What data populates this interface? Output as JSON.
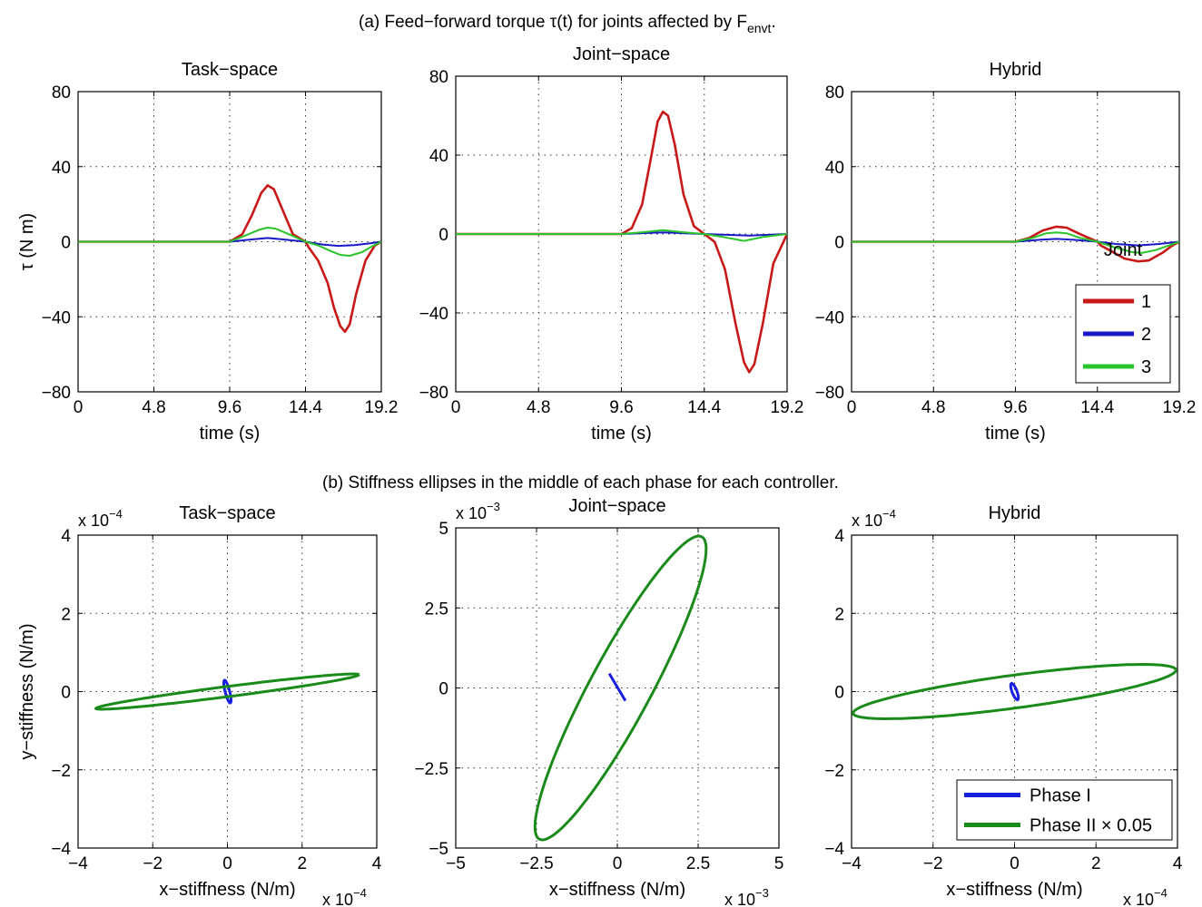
{
  "section_a_title": "(a) Feed−forward torque τ(t) for joints affected by F",
  "section_a_title_sub": "envt",
  "section_a_title_end": ".",
  "section_b_title": "(b) Stiffness ellipses in the middle of each phase for each controller.",
  "colors": {
    "joint1": "#c81818",
    "joint2": "#1818c8",
    "joint3": "#28c428",
    "phase1": "#1820e0",
    "phase2": "#1a8a1a"
  },
  "chart_data": [
    {
      "id": "torque-task",
      "type": "line",
      "title": "Task−space",
      "xlabel": "time (s)",
      "ylabel": "τ (N m)",
      "xlim": [
        0,
        19.2
      ],
      "ylim": [
        -80,
        80
      ],
      "xticks": [
        0,
        4.8,
        9.6,
        14.4,
        19.2
      ],
      "xtick_labels": [
        "0",
        "4.8",
        "9.6",
        "14.4",
        "19.2"
      ],
      "yticks": [
        -80,
        -40,
        0,
        40,
        80
      ],
      "ytick_labels": [
        "−80",
        "−40",
        "0",
        "40",
        "80"
      ],
      "grid": true,
      "series": [
        {
          "name": "1",
          "color": "#c81818",
          "x": [
            0,
            4.8,
            4.9,
            9.6,
            10.4,
            11,
            11.6,
            12,
            12.4,
            13,
            13.6,
            14.4,
            14.6,
            15.2,
            15.8,
            16.2,
            16.6,
            16.9,
            17.2,
            17.6,
            18.2,
            18.8,
            19.2
          ],
          "y": [
            0,
            0,
            0,
            0,
            4,
            14,
            26,
            30,
            28,
            16,
            4,
            0,
            -3,
            -10,
            -22,
            -35,
            -45,
            -48,
            -44,
            -28,
            -10,
            -2,
            0
          ]
        },
        {
          "name": "2",
          "color": "#1818c8",
          "x": [
            0,
            9.6,
            11,
            12,
            13,
            14.4,
            15.5,
            16.5,
            17.5,
            18.5,
            19.2
          ],
          "y": [
            0,
            0,
            1.2,
            2,
            1.2,
            0,
            -1.5,
            -2.2,
            -1.8,
            -0.8,
            0
          ]
        },
        {
          "name": "3",
          "color": "#28c428",
          "x": [
            0,
            9.6,
            10.5,
            11.5,
            12,
            12.5,
            13.5,
            14.4,
            15.2,
            16,
            16.6,
            17.2,
            18,
            18.6,
            19.2
          ],
          "y": [
            0,
            0,
            3,
            6.5,
            7.5,
            7,
            3.5,
            0,
            -2,
            -5,
            -7,
            -7.5,
            -5.5,
            -2.5,
            0
          ]
        }
      ]
    },
    {
      "id": "torque-joint",
      "type": "line",
      "title": "Joint−space",
      "xlabel": "time (s)",
      "ylabel": "",
      "xlim": [
        0,
        19.2
      ],
      "ylim": [
        -80,
        80
      ],
      "xticks": [
        0,
        4.8,
        9.6,
        14.4,
        19.2
      ],
      "xtick_labels": [
        "0",
        "4.8",
        "9.6",
        "14.4",
        "19.2"
      ],
      "yticks": [
        -80,
        -40,
        0,
        40,
        80
      ],
      "ytick_labels": [
        "−80",
        "−40",
        "0",
        "40",
        "80"
      ],
      "grid": true,
      "series": [
        {
          "name": "1",
          "color": "#c81818",
          "x": [
            0,
            9.6,
            10.2,
            10.8,
            11.3,
            11.7,
            12,
            12.3,
            12.7,
            13.2,
            13.8,
            14.4,
            15,
            15.6,
            16.2,
            16.7,
            17,
            17.3,
            17.8,
            18.4,
            19.2
          ],
          "y": [
            0,
            0,
            3,
            15,
            38,
            57,
            62,
            60,
            45,
            20,
            4,
            0,
            -4,
            -18,
            -45,
            -65,
            -70,
            -66,
            -45,
            -15,
            0
          ]
        },
        {
          "name": "2",
          "color": "#1818c8",
          "x": [
            0,
            9.6,
            12,
            14.4,
            17,
            19.2
          ],
          "y": [
            0,
            0,
            0.8,
            0,
            -0.8,
            0
          ]
        },
        {
          "name": "3",
          "color": "#28c428",
          "x": [
            0,
            9.6,
            11,
            12,
            13,
            14.4,
            15.5,
            16.7,
            17.8,
            19.2
          ],
          "y": [
            0,
            0,
            1,
            2,
            1,
            0,
            -1.5,
            -3.5,
            -1.5,
            0
          ]
        }
      ]
    },
    {
      "id": "torque-hybrid",
      "type": "line",
      "title": "Hybrid",
      "xlabel": "time (s)",
      "ylabel": "",
      "xlim": [
        0,
        19.2
      ],
      "ylim": [
        -80,
        80
      ],
      "xticks": [
        0,
        4.8,
        9.6,
        14.4,
        19.2
      ],
      "xtick_labels": [
        "0",
        "4.8",
        "9.6",
        "14.4",
        "19.2"
      ],
      "yticks": [
        -80,
        -40,
        0,
        40,
        80
      ],
      "ytick_labels": [
        "−80",
        "−40",
        "0",
        "40",
        "80"
      ],
      "grid": true,
      "legend": {
        "title": "Joint",
        "entries": [
          "1",
          "2",
          "3"
        ],
        "position": "bottom-right"
      },
      "series": [
        {
          "name": "1",
          "color": "#c81818",
          "x": [
            0,
            4.8,
            9.6,
            10.4,
            11.2,
            12,
            12.6,
            13.4,
            14.4,
            14.6,
            15.2,
            16,
            16.8,
            17.4,
            18.2,
            18.8,
            19.2
          ],
          "y": [
            0,
            0,
            0,
            2,
            6,
            8,
            7.5,
            4,
            0,
            -2,
            -5,
            -9,
            -10.5,
            -10,
            -6,
            -2,
            0
          ]
        },
        {
          "name": "2",
          "color": "#1818c8",
          "x": [
            0,
            9.6,
            11,
            12,
            13,
            14.4,
            15.5,
            16.8,
            18,
            19.2
          ],
          "y": [
            0,
            0,
            1,
            1.5,
            1,
            0,
            -1.2,
            -2,
            -1.2,
            0
          ]
        },
        {
          "name": "3",
          "color": "#28c428",
          "x": [
            0,
            9.6,
            10.6,
            11.4,
            12,
            12.6,
            13.4,
            14.4,
            15.4,
            16.4,
            17,
            17.8,
            18.6,
            19.2
          ],
          "y": [
            0,
            0,
            2,
            4.5,
            5,
            4.5,
            2,
            0,
            -3,
            -5.5,
            -6,
            -4.5,
            -2,
            0
          ]
        }
      ]
    },
    {
      "id": "stiff-task",
      "type": "line",
      "title": "Task−space",
      "xlabel": "x−stiffness (N/m)",
      "ylabel": "y−stiffness (N/m)",
      "xlim": [
        -4,
        4
      ],
      "ylim": [
        -4,
        4
      ],
      "x_exponent": "x 10",
      "x_exponent_power": "−4",
      "y_exponent": "x 10",
      "y_exponent_power": "−4",
      "xticks": [
        -4,
        -2,
        0,
        2,
        4
      ],
      "xtick_labels": [
        "−4",
        "−2",
        "0",
        "2",
        "4"
      ],
      "yticks": [
        -4,
        -2,
        0,
        2,
        4
      ],
      "ytick_labels": [
        "−4",
        "−2",
        "0",
        "2",
        "4"
      ],
      "grid": true,
      "series": [
        {
          "name": "Phase I",
          "color": "#1820e0",
          "ellipse": {
            "cx": 0,
            "cy": 0,
            "semi_major": 0.3,
            "semi_minor": 0.06,
            "angle_deg": -75
          }
        },
        {
          "name": "Phase II × 0.05",
          "color": "#1a8a1a",
          "ellipse": {
            "cx": 0,
            "cy": 0,
            "semi_major": 3.55,
            "semi_minor": 0.13,
            "angle_deg": 7
          }
        }
      ]
    },
    {
      "id": "stiff-joint",
      "type": "line",
      "title": "Joint−space",
      "xlabel": "x−stiffness (N/m)",
      "ylabel": "",
      "xlim": [
        -5,
        5
      ],
      "ylim": [
        -5,
        5
      ],
      "x_exponent": "x 10",
      "x_exponent_power": "−3",
      "y_exponent": "x 10",
      "y_exponent_power": "−3",
      "xticks": [
        -5,
        -2.5,
        0,
        2.5,
        5
      ],
      "xtick_labels": [
        "−5",
        "−2.5",
        "0",
        "2.5",
        "5"
      ],
      "yticks": [
        -5,
        -2.5,
        0,
        2.5,
        5
      ],
      "ytick_labels": [
        "−5",
        "−2.5",
        "0",
        "2.5",
        "5"
      ],
      "grid": true,
      "series": [
        {
          "name": "Phase I",
          "color": "#1820e0",
          "segment": [
            [
              -0.25,
              0.45
            ],
            [
              0.25,
              -0.4
            ]
          ]
        },
        {
          "name": "Phase II × 0.05",
          "color": "#1a8a1a",
          "ellipse": {
            "cx": 0.1,
            "cy": 0,
            "semi_major": 5.35,
            "semi_minor": 0.95,
            "angle_deg": 62
          }
        }
      ]
    },
    {
      "id": "stiff-hybrid",
      "type": "line",
      "title": "Hybrid",
      "xlabel": "x−stiffness (N/m)",
      "ylabel": "",
      "xlim": [
        -4,
        4
      ],
      "ylim": [
        -4,
        4
      ],
      "x_exponent": "x 10",
      "x_exponent_power": "−4",
      "y_exponent": "x 10",
      "y_exponent_power": "−4",
      "xticks": [
        -4,
        -2,
        0,
        2,
        4
      ],
      "xtick_labels": [
        "−4",
        "−2",
        "0",
        "2",
        "4"
      ],
      "yticks": [
        -4,
        -2,
        0,
        2,
        4
      ],
      "ytick_labels": [
        "−4",
        "−2",
        "0",
        "2",
        "4"
      ],
      "grid": true,
      "legend": {
        "entries": [
          "Phase I",
          "Phase II × 0.05"
        ],
        "position": "bottom-right"
      },
      "series": [
        {
          "name": "Phase I",
          "color": "#1820e0",
          "ellipse": {
            "cx": 0,
            "cy": 0,
            "semi_major": 0.22,
            "semi_minor": 0.06,
            "angle_deg": -70
          }
        },
        {
          "name": "Phase II × 0.05",
          "color": "#1a8a1a",
          "ellipse": {
            "cx": 0,
            "cy": 0,
            "semi_major": 4.0,
            "semi_minor": 0.42,
            "angle_deg": 8
          }
        }
      ]
    }
  ]
}
